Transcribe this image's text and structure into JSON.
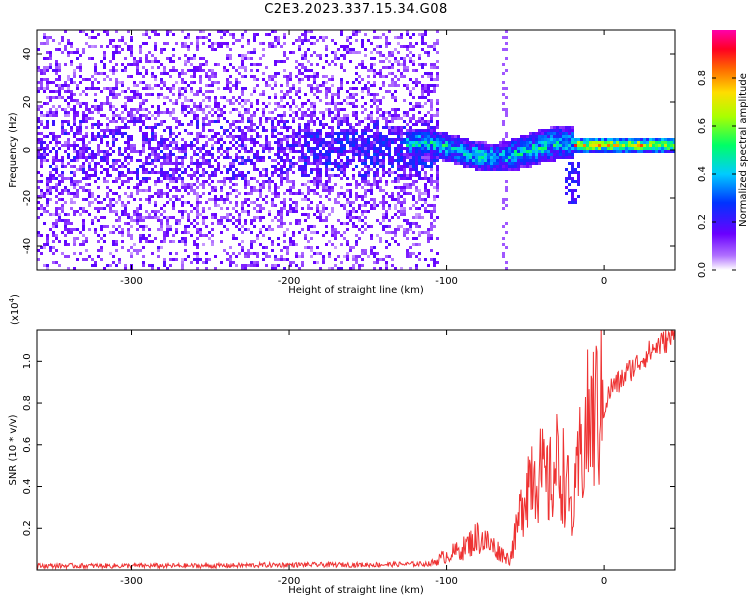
{
  "title": "C2E3.2023.337.15.34.G08",
  "chart_data": [
    {
      "type": "heatmap",
      "xlabel": "Height of straight line (km)",
      "ylabel": "Frequency (Hz)",
      "xlim": [
        -360,
        45
      ],
      "ylim": [
        -50,
        50
      ],
      "xticks": [
        -300,
        -200,
        -100,
        0
      ],
      "yticks": [
        -40,
        -20,
        0,
        20,
        40
      ],
      "colorbar": {
        "label": "Normalized spectral amplitude",
        "range": [
          0.0,
          1.0
        ],
        "ticks": [
          "0.0",
          "0.2",
          "0.4",
          "0.6",
          "0.8"
        ],
        "tick_values": [
          0.0,
          0.2,
          0.4,
          0.6,
          0.8
        ],
        "colormap": "rainbow (violet-blue-cyan-green-yellow-orange-red-magenta)"
      },
      "features": {
        "noise_region_x": [
          -360,
          -105
        ],
        "signal_band_center_hz": 0,
        "signal_band_x": [
          -125,
          45
        ],
        "strong_signal_x": [
          -20,
          45
        ],
        "vertical_artifact_x": -63
      }
    },
    {
      "type": "line",
      "xlabel": "Height of straight line (km)",
      "ylabel": "SNR (10 * v/v)",
      "y_multiplier": "(x10",
      "y_multiplier_exp": "4",
      "y_multiplier_close": ")",
      "xlim": [
        -360,
        45
      ],
      "ylim": [
        0.0,
        1.15
      ],
      "xticks": [
        -300,
        -200,
        -100,
        0
      ],
      "yticks": [
        0.2,
        0.4,
        0.6,
        0.8,
        1.0
      ],
      "ytick_labels": [
        "0.2",
        "0.4",
        "0.6",
        "0.8",
        "1.0"
      ],
      "series": [
        {
          "color": "#ee3333",
          "x": [
            -360,
            -300,
            -250,
            -200,
            -150,
            -110,
            -100,
            -90,
            -80,
            -70,
            -60,
            -55,
            -50,
            -45,
            -40,
            -35,
            -30,
            -25,
            -20,
            -15,
            -10,
            -5,
            0,
            5,
            10,
            15,
            20,
            25,
            30,
            35,
            40,
            45
          ],
          "y": [
            0.02,
            0.02,
            0.02,
            0.025,
            0.025,
            0.03,
            0.07,
            0.1,
            0.16,
            0.11,
            0.05,
            0.2,
            0.4,
            0.5,
            0.45,
            0.4,
            0.5,
            0.45,
            0.25,
            0.55,
            0.7,
            0.75,
            0.78,
            0.88,
            0.9,
            0.95,
            0.98,
            1.02,
            1.05,
            1.08,
            1.1,
            1.12
          ]
        }
      ]
    }
  ]
}
